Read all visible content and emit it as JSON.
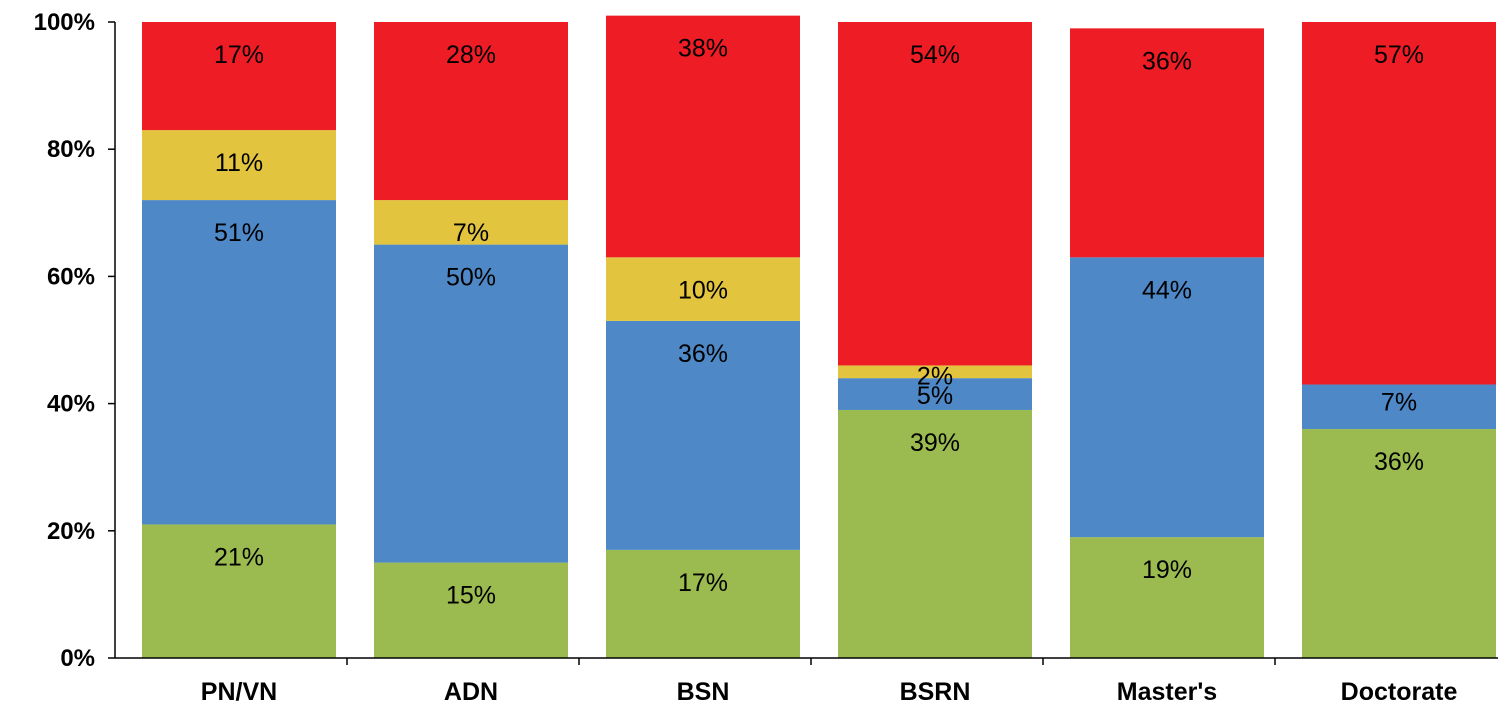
{
  "chart_data": {
    "type": "bar",
    "stacked": true,
    "categories": [
      "PN/VN",
      "ADN",
      "BSN",
      "BSRN",
      "Master's",
      "Doctorate"
    ],
    "series": [
      {
        "color": "#9bbb50",
        "values": [
          21,
          15,
          17,
          39,
          19,
          36
        ],
        "labels": [
          "21%",
          "15%",
          "17%",
          "39%",
          "19%",
          "36%"
        ]
      },
      {
        "color": "#4e88c7",
        "values": [
          51,
          50,
          36,
          5,
          44,
          7
        ],
        "labels": [
          "51%",
          "50%",
          "36%",
          "5%",
          "44%",
          "7%"
        ]
      },
      {
        "color": "#e2c43f",
        "values": [
          11,
          7,
          10,
          2,
          0,
          0
        ],
        "labels": [
          "11%",
          "7%",
          "10%",
          "2%",
          "",
          ""
        ]
      },
      {
        "color": "#ee1c25",
        "values": [
          17,
          28,
          38,
          54,
          36,
          57
        ],
        "labels": [
          "17%",
          "28%",
          "38%",
          "54%",
          "36%",
          "57%"
        ]
      }
    ],
    "yticks": [
      "0%",
      "20%",
      "40%",
      "60%",
      "80%",
      "100%"
    ],
    "ylim": [
      0,
      100
    ],
    "grid": false,
    "legend": "none",
    "title": "",
    "xlabel": "",
    "ylabel": ""
  }
}
